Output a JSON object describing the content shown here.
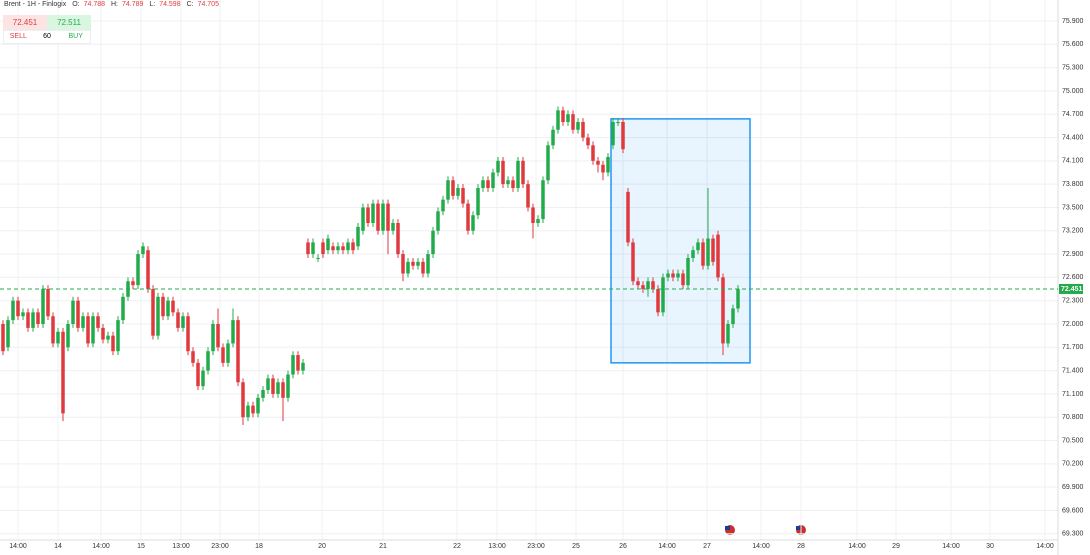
{
  "header": {
    "symbol": "Brent - 1H - Finlogix",
    "ohlc": [
      {
        "label": "O:",
        "value": "74.788"
      },
      {
        "label": "H:",
        "value": "74.789"
      },
      {
        "label": "L:",
        "value": "74.598"
      },
      {
        "label": "C:",
        "value": "74.705"
      }
    ]
  },
  "trade_widget": {
    "sell_price": "72.451",
    "buy_price": "72.511",
    "sell": "SELL",
    "quantity": "60",
    "buy": "BUY"
  },
  "chart_data": {
    "type": "candlestick",
    "up_color": "#22ab4a",
    "down_color": "#e0393e",
    "grid": true,
    "x": [
      0,
      1,
      2,
      3,
      4,
      5,
      6,
      7,
      8,
      9,
      10,
      11,
      12,
      13,
      14,
      15,
      16,
      17,
      18,
      19,
      20,
      21,
      22,
      23,
      24,
      25,
      26,
      27,
      28,
      29,
      30,
      31,
      32,
      33,
      34,
      35,
      36,
      37,
      38,
      39,
      40,
      41,
      42,
      43,
      44,
      45,
      46,
      47,
      48,
      49,
      50,
      51,
      52,
      53,
      54,
      55,
      56,
      57,
      58,
      59,
      60,
      61,
      62,
      63,
      64,
      65,
      66,
      67,
      68,
      69,
      70,
      71,
      72,
      73,
      74,
      75,
      76,
      77,
      78,
      79,
      80,
      81,
      82,
      83,
      84,
      85,
      86,
      87,
      88,
      89,
      90,
      91,
      92,
      93,
      94,
      95,
      96,
      97,
      98,
      99,
      100,
      101,
      102,
      103,
      104,
      105,
      106,
      107,
      108,
      109,
      110,
      111,
      112,
      113,
      114,
      115,
      116,
      117,
      118,
      119,
      120,
      121,
      122,
      123,
      124,
      125,
      126,
      127,
      128,
      129,
      130,
      131,
      132,
      133,
      134,
      135,
      136,
      137,
      138,
      139,
      140,
      141,
      142,
      143,
      144,
      145,
      146,
      147
    ],
    "open": [
      72.0,
      71.7,
      72.05,
      72.3,
      72.1,
      72.15,
      71.95,
      72.15,
      72.0,
      72.45,
      72.1,
      71.75,
      71.9,
      71.7,
      72.0,
      72.3,
      71.95,
      72.1,
      71.75,
      72.1,
      71.95,
      71.8,
      71.85,
      71.65,
      72.05,
      72.35,
      72.55,
      72.5,
      72.9,
      72.95,
      72.45,
      71.85,
      72.35,
      72.1,
      72.3,
      72.15,
      71.95,
      72.1,
      71.65,
      71.5,
      71.2,
      71.4,
      71.65,
      72.0,
      71.7,
      71.5,
      71.75,
      72.05,
      71.25,
      70.8,
      70.95,
      70.85,
      71.05,
      71.15,
      71.3,
      71.1,
      71.25,
      71.05,
      71.35,
      71.6,
      71.4,
      73.05,
      72.9,
      72.85,
      73.05,
      72.95,
      73.0,
      72.95,
      73.0,
      72.95,
      73.05,
      73.0,
      73.2,
      73.5,
      73.3,
      73.55,
      73.2,
      73.55,
      73.2,
      73.3,
      72.9,
      72.65,
      72.8,
      72.75,
      72.8,
      72.65,
      72.9,
      73.2,
      73.45,
      73.6,
      73.85,
      73.65,
      73.75,
      73.55,
      73.2,
      73.4,
      73.75,
      73.85,
      73.75,
      73.95,
      74.1,
      73.8,
      73.85,
      73.75,
      74.1,
      73.8,
      73.5,
      73.3,
      73.35,
      73.85,
      74.3,
      74.5,
      74.75,
      74.6,
      74.7,
      74.5,
      74.6,
      74.4,
      74.3,
      74.1,
      74.05,
      73.95,
      74.3,
      74.6,
      74.6,
      73.7,
      73.05,
      72.55,
      72.5,
      72.45,
      72.55,
      72.45,
      72.15,
      72.6,
      72.65,
      72.6,
      72.65,
      72.5,
      72.85,
      72.95,
      73.05,
      72.75,
      73.1,
      73.15,
      72.6,
      71.75,
      72.0,
      72.2
    ],
    "high": [
      72.05,
      72.1,
      72.35,
      72.35,
      72.2,
      72.2,
      72.2,
      72.2,
      72.5,
      72.5,
      72.15,
      71.95,
      71.95,
      72.05,
      72.35,
      72.35,
      72.15,
      72.15,
      72.15,
      72.15,
      72.0,
      71.9,
      71.9,
      72.1,
      72.4,
      72.6,
      72.6,
      72.95,
      73.05,
      73.0,
      72.5,
      72.4,
      72.4,
      72.35,
      72.35,
      72.2,
      72.15,
      72.15,
      71.7,
      71.55,
      71.45,
      71.7,
      72.05,
      72.2,
      71.75,
      71.8,
      72.2,
      72.1,
      71.3,
      71.0,
      71.0,
      71.1,
      71.2,
      71.35,
      71.35,
      71.3,
      71.3,
      71.4,
      71.65,
      71.65,
      71.55,
      73.1,
      73.1,
      72.9,
      73.1,
      73.15,
      73.05,
      73.05,
      73.05,
      73.1,
      73.1,
      73.3,
      73.55,
      73.55,
      73.6,
      73.6,
      73.6,
      73.6,
      73.35,
      73.35,
      72.95,
      72.85,
      72.85,
      72.85,
      72.85,
      72.95,
      73.25,
      73.5,
      73.65,
      73.9,
      73.9,
      73.8,
      73.8,
      73.6,
      73.45,
      73.8,
      73.9,
      73.9,
      74.0,
      74.15,
      74.15,
      73.9,
      73.9,
      74.15,
      74.15,
      73.85,
      73.55,
      73.4,
      73.9,
      74.35,
      74.55,
      74.8,
      74.8,
      74.75,
      74.75,
      74.65,
      74.65,
      74.45,
      74.35,
      74.15,
      74.1,
      74.2,
      74.65,
      74.65,
      74.65,
      73.75,
      73.1,
      72.6,
      72.55,
      72.6,
      72.6,
      72.5,
      72.65,
      72.7,
      72.7,
      72.7,
      72.7,
      72.9,
      73.0,
      73.1,
      73.1,
      73.75,
      73.15,
      73.2,
      72.65,
      72.05,
      72.25,
      72.5
    ],
    "low": [
      71.6,
      71.65,
      72.0,
      72.05,
      72.05,
      71.9,
      71.9,
      71.95,
      71.95,
      72.05,
      71.7,
      71.7,
      70.75,
      71.65,
      71.95,
      71.9,
      71.9,
      71.7,
      71.7,
      71.9,
      71.75,
      71.75,
      71.6,
      71.6,
      72.0,
      72.3,
      72.45,
      72.45,
      72.85,
      72.4,
      71.8,
      71.8,
      72.05,
      72.05,
      72.1,
      71.9,
      71.9,
      71.6,
      71.45,
      71.15,
      71.15,
      71.35,
      71.6,
      71.65,
      71.45,
      71.45,
      71.7,
      71.2,
      70.7,
      70.75,
      70.8,
      70.8,
      71.0,
      71.1,
      71.05,
      71.05,
      70.75,
      71.0,
      71.3,
      71.35,
      71.35,
      72.85,
      72.85,
      72.8,
      72.85,
      72.9,
      72.9,
      72.9,
      72.9,
      72.9,
      72.9,
      72.95,
      73.15,
      73.25,
      73.25,
      73.15,
      73.15,
      72.9,
      73.15,
      72.85,
      72.55,
      72.6,
      72.7,
      72.7,
      72.6,
      72.6,
      72.85,
      73.15,
      73.4,
      73.55,
      73.6,
      73.6,
      73.5,
      73.15,
      73.15,
      73.35,
      73.7,
      73.7,
      73.7,
      73.9,
      73.75,
      73.75,
      73.7,
      73.7,
      73.75,
      73.45,
      73.1,
      73.25,
      73.3,
      73.8,
      74.25,
      74.45,
      74.55,
      74.55,
      74.45,
      74.45,
      74.35,
      74.25,
      74.05,
      73.95,
      73.85,
      73.9,
      74.25,
      74.55,
      74.2,
      73.0,
      72.5,
      72.45,
      72.4,
      72.35,
      72.4,
      72.1,
      72.1,
      72.55,
      72.55,
      72.55,
      72.45,
      72.45,
      72.8,
      72.9,
      72.7,
      72.7,
      72.75,
      72.55,
      71.6,
      71.7,
      71.95,
      72.15
    ],
    "close": [
      71.65,
      72.05,
      72.3,
      72.1,
      72.15,
      71.95,
      72.15,
      72.0,
      72.45,
      72.1,
      71.75,
      71.9,
      70.85,
      72.0,
      72.3,
      71.95,
      72.1,
      71.75,
      72.1,
      71.95,
      71.8,
      71.85,
      71.65,
      72.05,
      72.35,
      72.55,
      72.5,
      72.9,
      73.0,
      72.45,
      71.85,
      72.35,
      72.1,
      72.3,
      72.15,
      71.95,
      72.1,
      71.65,
      71.5,
      71.2,
      71.4,
      71.65,
      72.0,
      71.7,
      71.5,
      71.75,
      72.05,
      71.25,
      70.8,
      70.95,
      70.85,
      71.05,
      71.15,
      71.3,
      71.1,
      71.25,
      71.05,
      71.35,
      71.6,
      71.4,
      71.5,
      72.9,
      73.05,
      72.85,
      72.9,
      73.1,
      72.95,
      73.0,
      72.95,
      73.05,
      72.95,
      73.25,
      73.5,
      73.3,
      73.55,
      73.2,
      73.55,
      73.2,
      73.3,
      72.9,
      72.65,
      72.8,
      72.75,
      72.8,
      72.65,
      72.9,
      73.2,
      73.45,
      73.6,
      73.85,
      73.65,
      73.75,
      73.55,
      73.2,
      73.4,
      73.75,
      73.85,
      73.75,
      73.95,
      74.1,
      73.8,
      73.85,
      73.75,
      74.1,
      73.8,
      73.5,
      73.3,
      73.35,
      73.85,
      74.3,
      74.5,
      74.75,
      74.6,
      74.7,
      74.5,
      74.6,
      74.4,
      74.3,
      74.1,
      74.05,
      73.95,
      74.15,
      74.6,
      74.6,
      74.25,
      73.05,
      72.55,
      72.5,
      72.45,
      72.55,
      72.45,
      72.15,
      72.6,
      72.65,
      72.6,
      72.65,
      72.5,
      72.85,
      72.95,
      73.05,
      72.75,
      73.1,
      72.8,
      72.6,
      71.75,
      72.0,
      72.2,
      72.45
    ],
    "xlim": [
      -0.6,
      211
    ],
    "ylim": [
      69.22,
      76.17
    ],
    "xticks": [
      {
        "value": 3,
        "label": "14:00"
      },
      {
        "value": 11,
        "label": "14"
      },
      {
        "value": 19.6,
        "label": "14:00"
      },
      {
        "value": 27.6,
        "label": "15"
      },
      {
        "value": 35.6,
        "label": "13:00"
      },
      {
        "value": 43.4,
        "label": "23:00"
      },
      {
        "value": 51.2,
        "label": "18"
      },
      {
        "value": 63.8,
        "label": "20"
      },
      {
        "value": 76,
        "label": "21"
      },
      {
        "value": 90.8,
        "label": "22"
      },
      {
        "value": 98.8,
        "label": "13:00"
      },
      {
        "value": 106.6,
        "label": "23:00"
      },
      {
        "value": 114.6,
        "label": "25"
      },
      {
        "value": 124,
        "label": "26"
      },
      {
        "value": 132.8,
        "label": "14:00"
      },
      {
        "value": 140.8,
        "label": "27"
      },
      {
        "value": 151.6,
        "label": "14:00"
      },
      {
        "value": 159.6,
        "label": "28"
      },
      {
        "value": 170.8,
        "label": "14:00"
      },
      {
        "value": 178.6,
        "label": "29"
      },
      {
        "value": 189.6,
        "label": "14:00"
      },
      {
        "value": 197.4,
        "label": "30"
      },
      {
        "value": 208.4,
        "label": "14:00"
      }
    ],
    "yticks": [
      {
        "value": 75.9,
        "label": "75.900"
      },
      {
        "value": 75.6,
        "label": "75.600"
      },
      {
        "value": 75.3,
        "label": "75.300"
      },
      {
        "value": 75.0,
        "label": "75.000"
      },
      {
        "value": 74.7,
        "label": "74.700"
      },
      {
        "value": 74.4,
        "label": "74.400"
      },
      {
        "value": 74.1,
        "label": "74.100"
      },
      {
        "value": 73.8,
        "label": "73.800"
      },
      {
        "value": 73.5,
        "label": "73.500"
      },
      {
        "value": 73.2,
        "label": "73.200"
      },
      {
        "value": 72.9,
        "label": "72.900"
      },
      {
        "value": 72.6,
        "label": "72.600"
      },
      {
        "value": 72.3,
        "label": "72.300"
      },
      {
        "value": 72.0,
        "label": "72.000"
      },
      {
        "value": 71.7,
        "label": "71.700"
      },
      {
        "value": 71.4,
        "label": "71.400"
      },
      {
        "value": 71.1,
        "label": "71.100"
      },
      {
        "value": 70.8,
        "label": "70.800"
      },
      {
        "value": 70.5,
        "label": "70.500"
      },
      {
        "value": 70.2,
        "label": "70.200"
      },
      {
        "value": 69.9,
        "label": "69.900"
      },
      {
        "value": 69.6,
        "label": "69.600"
      },
      {
        "value": 69.3,
        "label": "69.300"
      }
    ],
    "current_price": 72.451,
    "current_price_color": "#22ab4a",
    "annotations": [
      {
        "type": "rectangle",
        "x": [
          121.6,
          149.4
        ],
        "y": [
          74.64,
          71.5
        ],
        "color": "#2196f3"
      }
    ]
  }
}
